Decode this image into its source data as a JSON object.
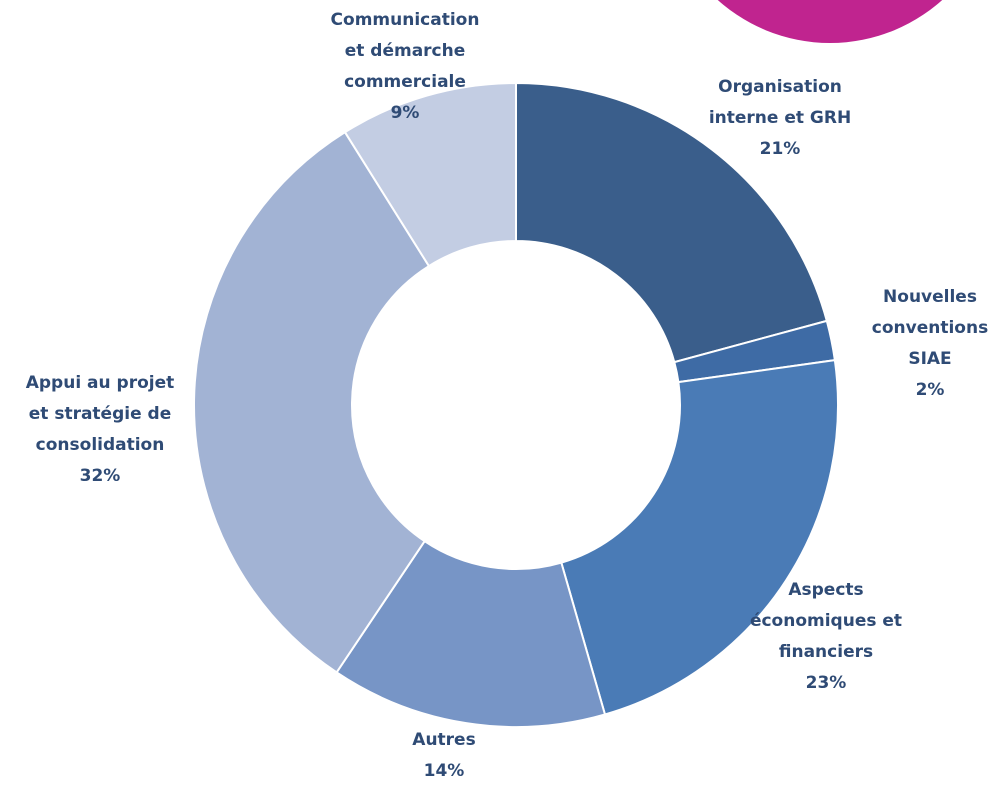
{
  "chart_data": {
    "type": "donut",
    "categories": [
      "Organisation\ninterne et GRH",
      "Nouvelles\nconventions\nSIAE",
      "Aspects\néconomiques et\nfinanciers",
      "Autres",
      "Appui au projet\net stratégie de\nconsolidation",
      "Communication\net démarche\ncommerciale"
    ],
    "values": [
      21,
      2,
      23,
      14,
      32,
      9
    ],
    "value_labels": [
      "21%",
      "2%",
      "23%",
      "14%",
      "32%",
      "9%"
    ],
    "colors": [
      "#3a5e8b",
      "#3e6ba5",
      "#4a7bb6",
      "#7795c6",
      "#a2b3d4",
      "#c3cde3"
    ]
  }
}
